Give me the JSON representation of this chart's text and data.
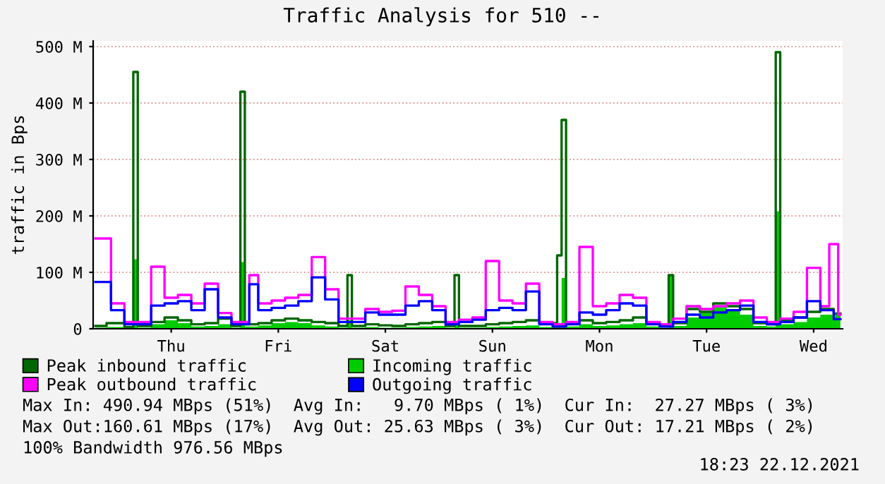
{
  "chart_data": {
    "type": "step",
    "title": "Traffic Analysis for 510 --",
    "ylabel": "traffic in Bps",
    "categories": [
      null,
      null,
      null,
      null,
      null,
      null,
      null,
      null,
      null,
      null,
      null,
      null,
      null,
      null,
      null,
      null,
      null,
      "Thu",
      null,
      null,
      null,
      null,
      null,
      null,
      null,
      null,
      null,
      null,
      null,
      null,
      null,
      null,
      null,
      null,
      null,
      null,
      null,
      null,
      null,
      null,
      null,
      "Fri",
      null,
      null,
      null,
      null,
      null,
      null,
      null,
      null,
      null,
      null,
      null,
      null,
      null,
      null,
      null,
      null,
      null,
      null,
      null,
      null,
      null,
      null,
      null,
      "Sat",
      null,
      null,
      null,
      null,
      null,
      null,
      null,
      null,
      null,
      null,
      null,
      null,
      null,
      null,
      null,
      null,
      null,
      null,
      null,
      null,
      null,
      null,
      null,
      "Sun",
      null,
      null,
      null,
      null,
      null,
      null,
      null,
      null,
      null,
      null,
      null,
      null,
      null,
      null,
      null,
      null,
      null,
      null,
      null,
      null,
      null,
      null,
      null,
      "Mon",
      null,
      null,
      null,
      null,
      null,
      null,
      null,
      null,
      null,
      null,
      null,
      null,
      null,
      null,
      null,
      null,
      null,
      null,
      null,
      null,
      null,
      null,
      null,
      "Tue",
      null,
      null,
      null,
      null,
      null,
      null,
      null,
      null,
      null,
      null,
      null,
      null,
      null,
      null,
      null,
      null,
      null,
      null,
      null,
      null,
      null,
      null,
      null,
      "Wed",
      null,
      null,
      null,
      null,
      null,
      null
    ],
    "ylim": [
      0,
      510
    ],
    "yticks": [
      {
        "value": 0,
        "label": "0"
      },
      {
        "value": 100,
        "label": "100 M"
      },
      {
        "value": 200,
        "label": "200 M"
      },
      {
        "value": 300,
        "label": "300 M"
      },
      {
        "value": 400,
        "label": "400 M"
      },
      {
        "value": 500,
        "label": "500 M"
      }
    ],
    "grid": "y",
    "legend": "bottom",
    "series": [
      {
        "name": "Peak inbound traffic",
        "color": "#006600",
        "values": [
          5,
          5,
          5,
          10,
          10,
          10,
          10,
          3,
          3,
          455,
          5,
          5,
          5,
          12,
          12,
          12,
          20,
          20,
          20,
          15,
          15,
          15,
          8,
          8,
          8,
          10,
          10,
          10,
          18,
          18,
          18,
          5,
          5,
          420,
          8,
          8,
          8,
          10,
          10,
          10,
          15,
          15,
          15,
          18,
          18,
          18,
          15,
          15,
          15,
          12,
          12,
          12,
          10,
          10,
          10,
          5,
          5,
          95,
          5,
          5,
          5,
          8,
          8,
          8,
          6,
          6,
          6,
          5,
          5,
          5,
          8,
          8,
          8,
          10,
          10,
          10,
          12,
          12,
          12,
          5,
          5,
          95,
          5,
          5,
          5,
          5,
          5,
          5,
          8,
          8,
          8,
          10,
          10,
          10,
          12,
          12,
          12,
          15,
          15,
          15,
          10,
          10,
          10,
          10,
          130,
          370,
          10,
          10,
          10,
          15,
          15,
          15,
          10,
          10,
          10,
          12,
          12,
          12,
          15,
          15,
          15,
          20,
          20,
          20,
          10,
          10,
          10,
          5,
          5,
          95,
          10,
          10,
          10,
          35,
          35,
          35,
          30,
          30,
          30,
          45,
          45,
          45,
          40,
          40,
          40,
          35,
          35,
          35,
          10,
          10,
          10,
          8,
          8,
          490,
          15,
          15,
          15,
          20,
          20,
          20,
          30,
          30,
          30,
          35,
          35,
          35,
          27,
          27
        ]
      },
      {
        "name": "Incoming traffic",
        "type": "area",
        "color": "#00cc00",
        "values": [
          2,
          2,
          2,
          3,
          3,
          3,
          3,
          1,
          1,
          123,
          2,
          2,
          2,
          8,
          8,
          8,
          15,
          15,
          15,
          10,
          10,
          10,
          4,
          4,
          4,
          5,
          5,
          5,
          8,
          8,
          8,
          2,
          2,
          118,
          4,
          4,
          4,
          6,
          6,
          6,
          10,
          10,
          10,
          12,
          12,
          12,
          10,
          10,
          10,
          6,
          6,
          6,
          4,
          4,
          4,
          2,
          2,
          15,
          2,
          2,
          2,
          3,
          3,
          3,
          2,
          2,
          2,
          2,
          2,
          2,
          3,
          3,
          3,
          4,
          4,
          4,
          5,
          5,
          5,
          2,
          2,
          10,
          2,
          2,
          2,
          2,
          2,
          2,
          3,
          3,
          3,
          4,
          4,
          4,
          5,
          5,
          5,
          6,
          6,
          6,
          3,
          3,
          3,
          3,
          10,
          90,
          4,
          4,
          4,
          8,
          8,
          8,
          5,
          5,
          5,
          6,
          6,
          6,
          8,
          8,
          8,
          10,
          10,
          10,
          4,
          4,
          4,
          2,
          2,
          95,
          5,
          5,
          5,
          20,
          20,
          20,
          28,
          28,
          28,
          38,
          38,
          38,
          33,
          33,
          33,
          25,
          25,
          25,
          5,
          5,
          5,
          4,
          4,
          208,
          8,
          8,
          8,
          12,
          12,
          12,
          20,
          20,
          20,
          25,
          25,
          25,
          27,
          27
        ]
      },
      {
        "name": "Peak outbound traffic",
        "color": "#ff00ff",
        "values": [
          160,
          160,
          160,
          160,
          45,
          45,
          45,
          12,
          12,
          12,
          12,
          12,
          12,
          110,
          110,
          110,
          55,
          55,
          55,
          60,
          60,
          60,
          45,
          45,
          45,
          80,
          80,
          80,
          28,
          28,
          28,
          12,
          12,
          12,
          12,
          95,
          95,
          45,
          45,
          45,
          50,
          50,
          50,
          55,
          55,
          55,
          60,
          60,
          60,
          127,
          127,
          127,
          70,
          70,
          70,
          18,
          18,
          18,
          18,
          18,
          18,
          35,
          35,
          35,
          30,
          30,
          30,
          32,
          32,
          32,
          75,
          75,
          75,
          60,
          60,
          60,
          40,
          40,
          40,
          12,
          12,
          12,
          16,
          16,
          16,
          20,
          20,
          20,
          120,
          120,
          120,
          50,
          50,
          50,
          45,
          45,
          45,
          80,
          80,
          80,
          12,
          12,
          12,
          8,
          8,
          8,
          12,
          12,
          12,
          145,
          145,
          145,
          40,
          40,
          40,
          45,
          45,
          45,
          60,
          60,
          60,
          55,
          55,
          55,
          12,
          12,
          12,
          8,
          8,
          8,
          18,
          18,
          18,
          40,
          40,
          40,
          35,
          35,
          35,
          40,
          40,
          40,
          45,
          45,
          45,
          50,
          50,
          50,
          20,
          20,
          20,
          12,
          12,
          12,
          18,
          18,
          18,
          30,
          30,
          30,
          108,
          108,
          108,
          40,
          40,
          150,
          150,
          25
        ]
      },
      {
        "name": "Outgoing traffic",
        "color": "#0000ff",
        "values": [
          83,
          83,
          83,
          83,
          33,
          33,
          33,
          8,
          8,
          8,
          8,
          8,
          8,
          41,
          41,
          41,
          45,
          45,
          45,
          49,
          49,
          49,
          33,
          33,
          33,
          70,
          70,
          70,
          20,
          20,
          20,
          8,
          8,
          8,
          8,
          79,
          79,
          33,
          33,
          33,
          37,
          37,
          37,
          41,
          41,
          41,
          49,
          49,
          49,
          91,
          91,
          91,
          52,
          52,
          52,
          12,
          12,
          12,
          12,
          12,
          12,
          29,
          29,
          29,
          25,
          25,
          25,
          25,
          25,
          25,
          41,
          41,
          41,
          49,
          49,
          49,
          33,
          33,
          33,
          8,
          8,
          8,
          12,
          12,
          12,
          16,
          16,
          16,
          33,
          33,
          33,
          37,
          37,
          37,
          33,
          33,
          33,
          66,
          66,
          66,
          8,
          8,
          8,
          4,
          4,
          4,
          8,
          8,
          8,
          29,
          29,
          29,
          25,
          25,
          25,
          33,
          33,
          33,
          45,
          45,
          45,
          41,
          41,
          41,
          8,
          8,
          8,
          4,
          4,
          4,
          12,
          12,
          12,
          25,
          25,
          25,
          20,
          20,
          20,
          29,
          29,
          29,
          33,
          33,
          33,
          41,
          41,
          41,
          12,
          12,
          12,
          8,
          8,
          8,
          12,
          12,
          12,
          20,
          20,
          20,
          49,
          49,
          49,
          33,
          33,
          33,
          17,
          17
        ]
      }
    ],
    "annotations": [
      "Max In: 490.94 MBps (51%)  Avg In:   9.70 MBps ( 1%)  Cur In:  27.27 MBps ( 3%)",
      "Max Out:160.61 MBps (17%)  Avg Out: 25.63 MBps ( 3%)  Cur Out: 17.21 MBps ( 2%)",
      "100% Bandwidth 976.56 MBps",
      "18:23 22.12.2021"
    ]
  }
}
